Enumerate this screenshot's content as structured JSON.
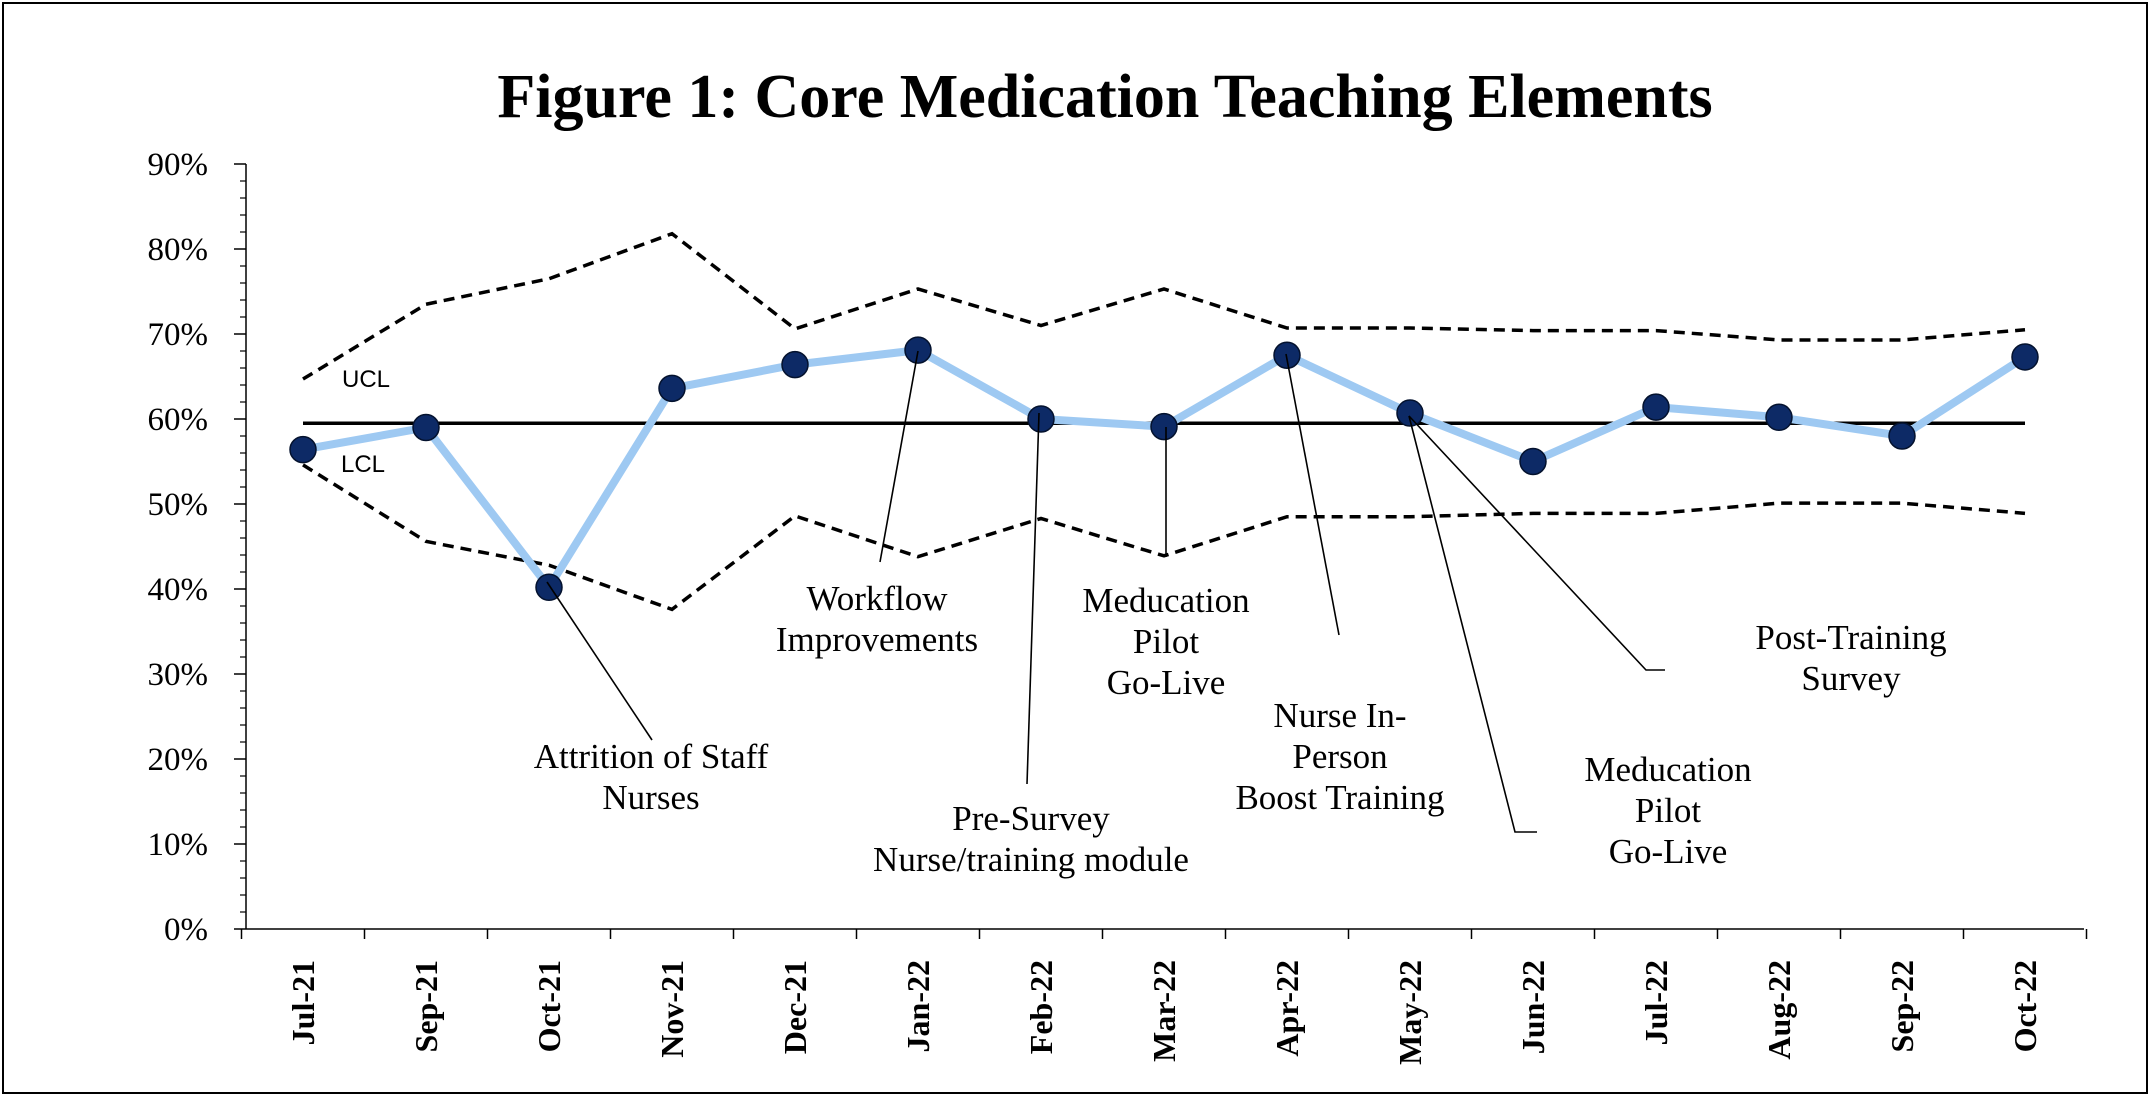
{
  "chart_data": {
    "type": "line",
    "title": "Figure 1: Core Medication Teaching Elements",
    "xlabel": "",
    "ylabel": "",
    "ylim": [
      0,
      90
    ],
    "y_tick_labels": [
      "0%",
      "10%",
      "20%",
      "30%",
      "40%",
      "50%",
      "60%",
      "70%",
      "80%",
      "90%"
    ],
    "categories": [
      "Jul-21",
      "Sep-21",
      "Oct-21",
      "Nov-21",
      "Dec-21",
      "Jan-22",
      "Feb-22",
      "Mar-22",
      "Apr-22",
      "May-22",
      "Jun-22",
      "Jul-22",
      "Aug-22",
      "Sep-22",
      "Oct-22"
    ],
    "series": [
      {
        "values": [
          56.4,
          59.0,
          40.2,
          63.6,
          66.4,
          68.1,
          60.0,
          59.1,
          67.5,
          60.7,
          55.0,
          61.4,
          60.2,
          58.0,
          67.3
        ],
        "color": "#9ec9f2",
        "marker_color": "#0d2a66"
      },
      {
        "values": [
          64.7,
          73.5,
          76.5,
          81.8,
          70.6,
          75.3,
          71.0,
          75.3,
          70.7,
          70.7,
          70.4,
          70.4,
          69.3,
          69.3,
          70.5
        ],
        "color": "#000000",
        "style": "dashed"
      },
      {
        "values": [
          54.6,
          45.6,
          42.8,
          37.6,
          48.6,
          43.8,
          48.3,
          43.9,
          48.5,
          48.5,
          48.9,
          48.9,
          50.1,
          50.1,
          48.9
        ],
        "color": "#000000",
        "style": "dashed"
      },
      {
        "values": [
          59.5,
          59.5,
          59.5,
          59.5,
          59.5,
          59.5,
          59.5,
          59.5,
          59.5,
          59.5,
          59.5,
          59.5,
          59.5,
          59.5,
          59.5
        ],
        "color": "#000000",
        "style": "solid"
      }
    ],
    "control_limit_labels": {
      "ucl": "UCL",
      "lcl": "LCL"
    },
    "annotations": [
      {
        "id": "attrition",
        "lines": [
          "Attrition of Staff",
          "Nurses"
        ],
        "point_index": 2
      },
      {
        "id": "workflow",
        "lines": [
          "Workflow",
          "Improvements"
        ],
        "point_index": 5
      },
      {
        "id": "presurvey",
        "lines": [
          "Pre-Survey",
          "Nurse/training module"
        ],
        "point_index": 6
      },
      {
        "id": "pilot1",
        "lines": [
          "Meducation",
          "Pilot",
          "Go-Live"
        ],
        "point_index": 7
      },
      {
        "id": "boost",
        "lines": [
          "Nurse In-",
          "Person",
          "Boost Training"
        ],
        "point_index": 8
      },
      {
        "id": "pilot2",
        "lines": [
          "Meducation",
          "Pilot",
          "Go-Live"
        ],
        "point_index": 9
      },
      {
        "id": "posttraining",
        "lines": [
          "Post-Training",
          "Survey"
        ],
        "point_index": 9
      }
    ],
    "grid": false,
    "legend": "none"
  }
}
